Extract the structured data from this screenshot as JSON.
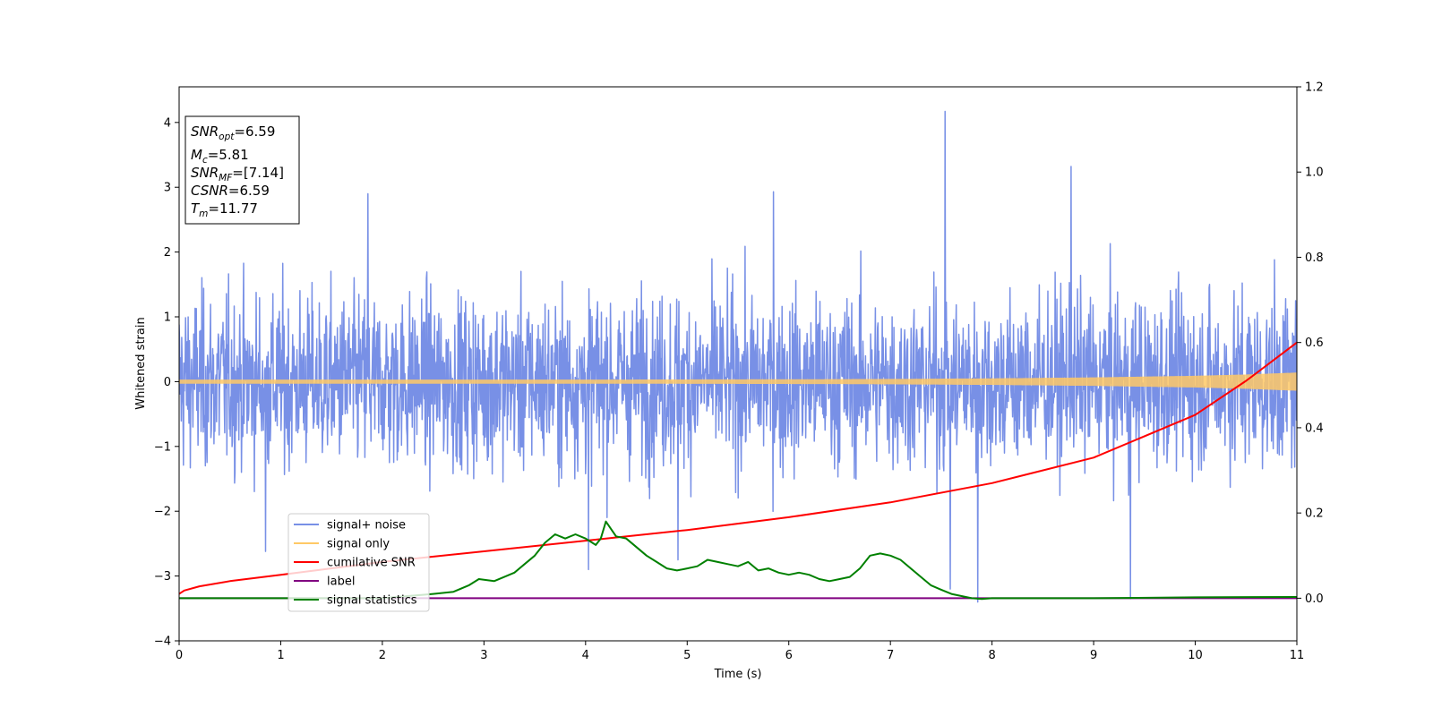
{
  "chart_data": {
    "type": "line",
    "xlabel": "Time (s)",
    "ylabel": "Whitened strain",
    "xlim": [
      0,
      11
    ],
    "ylim": [
      -4,
      4.55
    ],
    "y2lim": [
      -0.1,
      1.2
    ],
    "xticks": [
      0,
      1,
      2,
      3,
      4,
      5,
      6,
      7,
      8,
      9,
      10,
      11
    ],
    "yticks": [
      -4,
      -3,
      -2,
      -1,
      0,
      1,
      2,
      3,
      4
    ],
    "y2ticks": [
      0.0,
      0.2,
      0.4,
      0.6,
      0.8,
      1.0,
      1.2
    ],
    "grid": false,
    "legend_position": "lower-left",
    "info_box": {
      "lines": [
        {
          "italic": "SNR",
          "sub": "opt",
          "value": "=6.59"
        },
        {
          "italic": "M",
          "sub": "c",
          "value": "=5.81"
        },
        {
          "italic": "SNR",
          "sub": "MF",
          "value": "=[7.14]"
        },
        {
          "italic": "CSNR",
          "sub": "",
          "value": "=6.59"
        },
        {
          "italic": "T",
          "sub": "m",
          "value": "=11.77"
        }
      ]
    },
    "series": [
      {
        "name": "signal+ noise",
        "color": "#7890e6",
        "axis": "left",
        "kind": "noise",
        "band": {
          "mean": 0.0,
          "typical_abs": 1.3,
          "max_abs": 2.7
        },
        "spikes": [
          {
            "x": 7.54,
            "y": 4.17
          },
          {
            "x": 8.78,
            "y": 3.32
          },
          {
            "x": 7.86,
            "y": -3.4
          },
          {
            "x": 9.36,
            "y": -3.35
          },
          {
            "x": 7.59,
            "y": -3.2
          },
          {
            "x": 1.86,
            "y": 2.9
          },
          {
            "x": 5.85,
            "y": 2.93
          },
          {
            "x": 4.03,
            "y": -2.9
          },
          {
            "x": 4.91,
            "y": -2.75
          },
          {
            "x": 0.85,
            "y": -2.62
          }
        ]
      },
      {
        "name": "signal only",
        "color": "#ffc966",
        "axis": "left",
        "kind": "chirp",
        "x": [
          0,
          2,
          4,
          6,
          7,
          8,
          9,
          10,
          10.5,
          11
        ],
        "amplitude": [
          0.03,
          0.03,
          0.03,
          0.035,
          0.04,
          0.05,
          0.065,
          0.09,
          0.11,
          0.14
        ]
      },
      {
        "name": "cumilative SNR",
        "color": "#ff0000",
        "axis": "right",
        "x": [
          0,
          0.05,
          0.2,
          0.5,
          1,
          2,
          3,
          4,
          5,
          6,
          7,
          8,
          9,
          10,
          10.5,
          11
        ],
        "y": [
          0.01,
          0.018,
          0.028,
          0.04,
          0.055,
          0.085,
          0.11,
          0.135,
          0.16,
          0.19,
          0.225,
          0.27,
          0.33,
          0.43,
          0.51,
          0.6
        ]
      },
      {
        "name": "label",
        "color": "#800080",
        "axis": "right",
        "x": [
          0,
          11
        ],
        "y": [
          0.0,
          0.0
        ]
      },
      {
        "name": "signal statistics",
        "color": "#008000",
        "axis": "right",
        "x": [
          0,
          1,
          2,
          2.5,
          2.7,
          2.85,
          2.95,
          3.1,
          3.2,
          3.3,
          3.4,
          3.5,
          3.6,
          3.7,
          3.8,
          3.9,
          4.0,
          4.1,
          4.15,
          4.2,
          4.3,
          4.4,
          4.5,
          4.6,
          4.7,
          4.8,
          4.9,
          5.0,
          5.1,
          5.2,
          5.3,
          5.4,
          5.5,
          5.6,
          5.7,
          5.8,
          5.9,
          6.0,
          6.1,
          6.2,
          6.3,
          6.4,
          6.5,
          6.6,
          6.7,
          6.8,
          6.9,
          7.0,
          7.1,
          7.2,
          7.3,
          7.4,
          7.5,
          7.6,
          7.7,
          7.8,
          7.9,
          8.0,
          9.0,
          10.0,
          11.0
        ],
        "y": [
          0.0,
          0.0,
          0.0,
          0.01,
          0.015,
          0.03,
          0.045,
          0.04,
          0.05,
          0.06,
          0.08,
          0.1,
          0.13,
          0.15,
          0.14,
          0.15,
          0.14,
          0.125,
          0.14,
          0.18,
          0.145,
          0.14,
          0.12,
          0.1,
          0.085,
          0.07,
          0.065,
          0.07,
          0.075,
          0.09,
          0.085,
          0.08,
          0.075,
          0.085,
          0.065,
          0.07,
          0.06,
          0.055,
          0.06,
          0.055,
          0.045,
          0.04,
          0.045,
          0.05,
          0.07,
          0.1,
          0.105,
          0.1,
          0.09,
          0.07,
          0.05,
          0.03,
          0.02,
          0.01,
          0.005,
          0.0,
          -0.002,
          0.0,
          0.0,
          0.002,
          0.003
        ]
      }
    ]
  }
}
